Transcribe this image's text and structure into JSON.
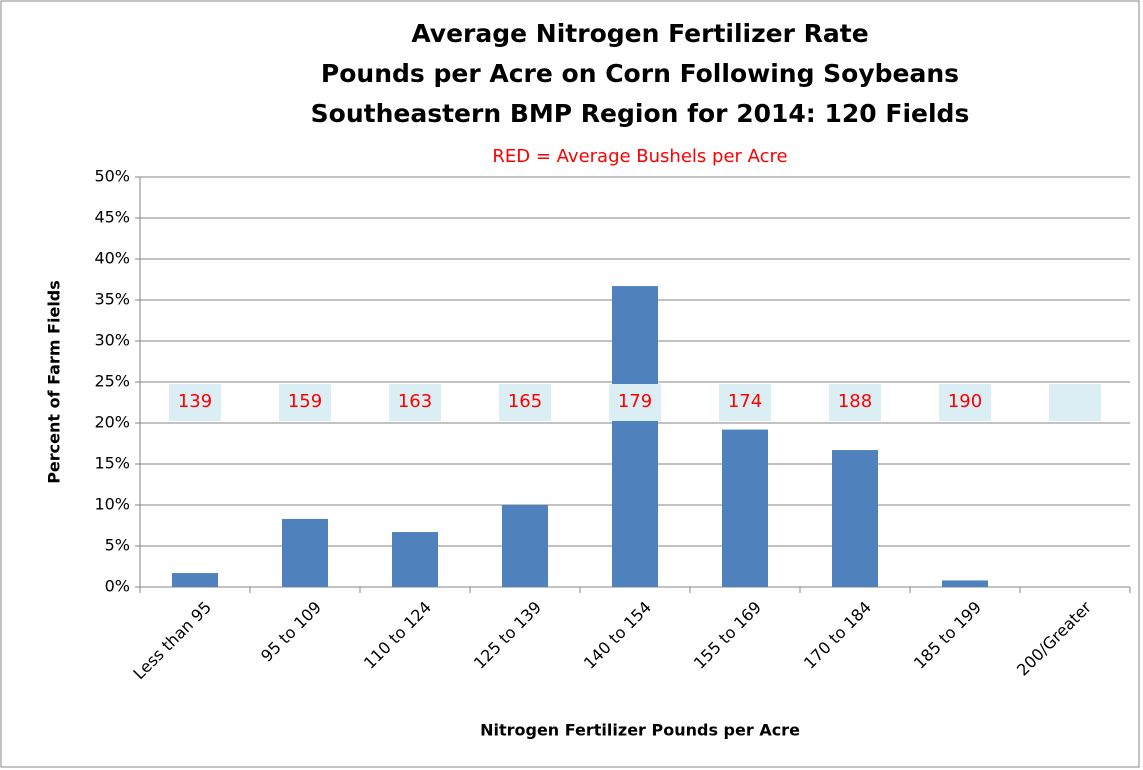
{
  "chart_data": {
    "type": "bar",
    "title": [
      "Average Nitrogen Fertilizer Rate",
      "Pounds per Acre on Corn Following Soybeans",
      "Southeastern BMP Region for 2014:  120 Fields"
    ],
    "subtitle": "RED = Average Bushels per Acre",
    "x_label": "Nitrogen Fertilizer Pounds per Acre",
    "y_label": "Percent of Farm Fields",
    "categories": [
      "Less than 95",
      "95 to 109",
      "110 to 124",
      "125 to 139",
      "140 to 154",
      "155 to 169",
      "170 to 184",
      "185 to 199",
      "200/Greater"
    ],
    "values": [
      1.7,
      8.3,
      6.7,
      10.0,
      36.7,
      19.2,
      16.7,
      0.8,
      0
    ],
    "yields": [
      139,
      159,
      163,
      165,
      179,
      174,
      188,
      190,
      null
    ],
    "color": "#4f81bd",
    "ylim": [
      0,
      50
    ],
    "yticks": [
      {
        "value": 0,
        "label": "0%"
      },
      {
        "value": 5,
        "label": "5%"
      },
      {
        "value": 10,
        "label": "10%"
      },
      {
        "value": 15,
        "label": "15%"
      },
      {
        "value": 20,
        "label": "20%"
      },
      {
        "value": 25,
        "label": "25%"
      },
      {
        "value": 30,
        "label": "30%"
      },
      {
        "value": 35,
        "label": "35%"
      },
      {
        "value": 40,
        "label": "40%"
      },
      {
        "value": 45,
        "label": "45%"
      },
      {
        "value": 50,
        "label": "50%"
      }
    ],
    "grid": true
  }
}
